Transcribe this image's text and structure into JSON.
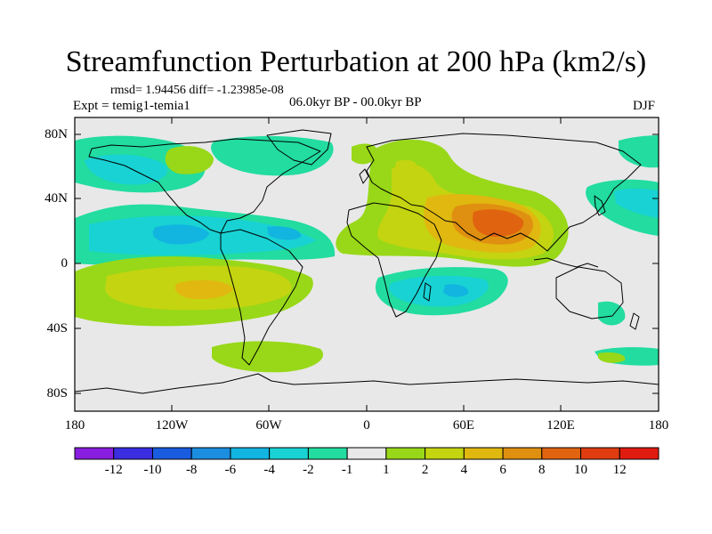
{
  "title": "Streamfunction Perturbation at 200 hPa (km2/s)",
  "subtitle": {
    "rmsd_line": "rmsd= 1.94456 diff= -1.23985e-08",
    "experiment": "Expt = temig1-temia1",
    "period": "06.0kyr BP - 00.0kyr BP",
    "season": "DJF"
  },
  "lat_ticks": [
    "80N",
    "40N",
    "0",
    "40S",
    "80S"
  ],
  "lon_ticks": [
    "180",
    "120W",
    "60W",
    "0",
    "60E",
    "120E",
    "180"
  ],
  "colorbar": {
    "labels": [
      "-12",
      "-10",
      "-8",
      "-6",
      "-4",
      "-2",
      "-1",
      "1",
      "2",
      "4",
      "6",
      "8",
      "10",
      "12"
    ],
    "colors": [
      "#8a1ee0",
      "#3a2ee0",
      "#1a5ce0",
      "#1b8ee0",
      "#12b4e0",
      "#18d2d4",
      "#22dca0",
      "#e8e8e8",
      "#98d818",
      "#c4d410",
      "#e0b810",
      "#e09010",
      "#e06410",
      "#e03c10",
      "#e01c10"
    ]
  },
  "levels": {
    "pos_1": "#98d818",
    "pos_2": "#c4d410",
    "pos_4": "#e0b810",
    "pos_6": "#e09010",
    "pos_8": "#e06410",
    "neg_1": "#22dca0",
    "neg_2": "#18d2d4",
    "neg_4": "#12b4e0"
  }
}
